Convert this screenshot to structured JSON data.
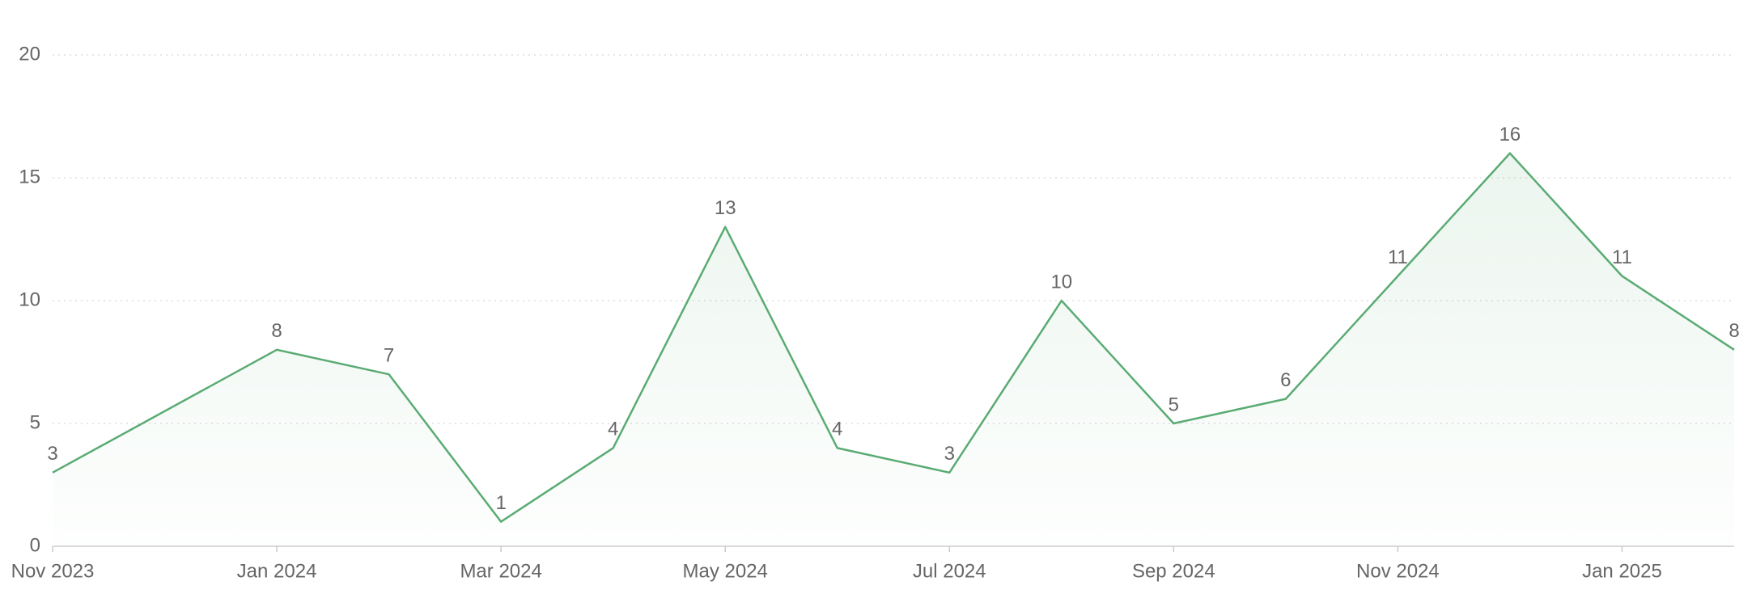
{
  "chart_data": {
    "type": "area",
    "x": [
      "2023-11",
      "2024-01",
      "2024-02",
      "2024-03",
      "2024-04",
      "2024-05",
      "2024-06",
      "2024-07",
      "2024-08",
      "2024-09",
      "2024-10",
      "2024-11",
      "2024-12",
      "2025-01",
      "2025-02"
    ],
    "values": [
      3,
      8,
      7,
      1,
      4,
      13,
      4,
      3,
      10,
      5,
      6,
      11,
      16,
      11,
      8
    ],
    "color": "#5aab73",
    "xlim": [
      "2023-11",
      "2025-02"
    ],
    "xticks": [
      {
        "value": "2023-11",
        "label": "Nov 2023"
      },
      {
        "value": "2024-01",
        "label": "Jan 2024"
      },
      {
        "value": "2024-03",
        "label": "Mar 2024"
      },
      {
        "value": "2024-05",
        "label": "May 2024"
      },
      {
        "value": "2024-07",
        "label": "Jul 2024"
      },
      {
        "value": "2024-09",
        "label": "Sep 2024"
      },
      {
        "value": "2024-11",
        "label": "Nov 2024"
      },
      {
        "value": "2025-01",
        "label": "Jan 2025"
      }
    ],
    "ylim": [
      0,
      20
    ],
    "yticks": [
      0,
      5,
      10,
      15,
      20
    ],
    "grid": true
  }
}
